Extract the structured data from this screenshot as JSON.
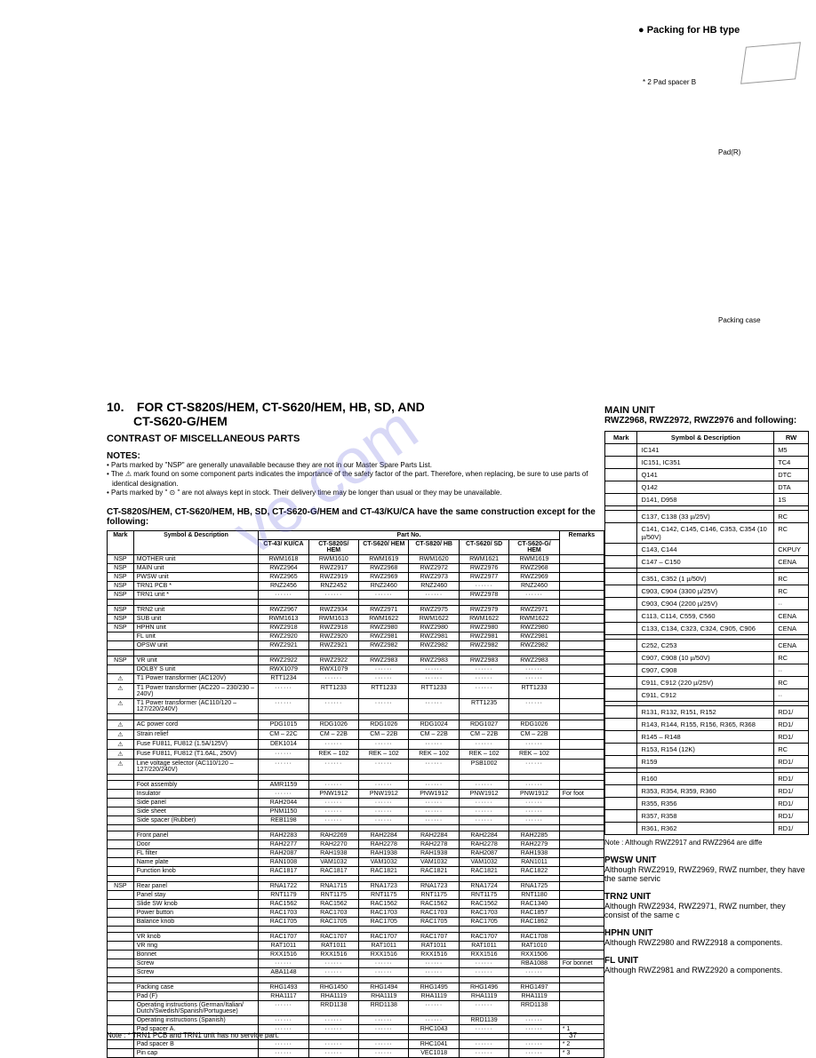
{
  "top_right": {
    "packing_header": "Packing for HB type",
    "pad_spacer": "* 2  Pad spacer B",
    "pad_r": "Pad(R)",
    "packing_case": "Packing case"
  },
  "watermark": "ve.com",
  "section": {
    "number": "10.",
    "title_line1": "FOR CT-S820S/HEM, CT-S620/HEM, HB, SD, AND",
    "title_line2": "CT-S620-G/HEM",
    "contrast": "CONTRAST OF MISCELLANEOUS PARTS",
    "notes_header": "NOTES:",
    "notes": [
      "• Parts marked by \"NSP\" are generally unavailable because they are not in our Master Spare Parts List.",
      "• The ⚠ mark found on some component parts indicates the importance of the safety factor of the part. Therefore, when replacing, be sure to use parts of identical designation.",
      "• Parts marked by \" ⊙ \" are not always kept in stock. Their delivery time may be longer than usual or they may be unavailable."
    ],
    "construction_note": "CT-S820S/HEM, CT-S620/HEM, HB, SD, CT-S620-G/HEM  and CT-43/KU/CA have the same construction except for the following:"
  },
  "table": {
    "header_partno": "Part No.",
    "cols": [
      "Mark",
      "Symbol & Description",
      "CT-43/\nKU/CA",
      "CT-S820S/\nHEM",
      "CT-S620/\nHEM",
      "CT-S820/\nHB",
      "CT-S620/\nSD",
      "CT-S620-G/\nHEM",
      "Remarks"
    ],
    "groups": [
      [
        [
          "NSP",
          "MOTHER unit",
          "RWM1618",
          "RWM1610",
          "RWM1619",
          "RWM1620",
          "RWM1621",
          "RWM1619",
          ""
        ],
        [
          "NSP",
          "MAIN unit",
          "RWZ2964",
          "RWZ2917",
          "RWZ2968",
          "RWZ2972",
          "RWZ2976",
          "RWZ2968",
          ""
        ],
        [
          "NSP",
          "PWSW unit",
          "RWZ2965",
          "RWZ2919",
          "RWZ2969",
          "RWZ2973",
          "RWZ2977",
          "RWZ2969",
          ""
        ],
        [
          "NSP",
          "TRN1 PCB *",
          "RNZ2456",
          "RNZ2452",
          "RNZ2460",
          "RNZ2460",
          "······",
          "RNZ2460",
          ""
        ],
        [
          "NSP",
          "TRN1 unit *",
          "······",
          "······",
          "······",
          "······",
          "RWZ2978",
          "······",
          ""
        ]
      ],
      [
        [
          "NSP",
          "TRN2 unit",
          "RWZ2967",
          "RWZ2934",
          "RWZ2971",
          "RWZ2975",
          "RWZ2979",
          "RWZ2971",
          ""
        ],
        [
          "NSP",
          "SUB unit",
          "RWM1613",
          "RWM1613",
          "RWM1622",
          "RWM1622",
          "RWM1622",
          "RWM1622",
          ""
        ],
        [
          "NSP",
          "HPHN unit",
          "RWZ2918",
          "RWZ2918",
          "RWZ2980",
          "RWZ2980",
          "RWZ2980",
          "RWZ2980",
          ""
        ],
        [
          "",
          "FL unit",
          "RWZ2920",
          "RWZ2920",
          "RWZ2981",
          "RWZ2981",
          "RWZ2981",
          "RWZ2981",
          ""
        ],
        [
          "",
          "OPSW unit",
          "RWZ2921",
          "RWZ2921",
          "RWZ2982",
          "RWZ2982",
          "RWZ2982",
          "RWZ2982",
          ""
        ]
      ],
      [
        [
          "NSP",
          "VR unit",
          "RWZ2922",
          "RWZ2922",
          "RWZ2983",
          "RWZ2983",
          "RWZ2983",
          "RWZ2983",
          ""
        ],
        [
          "",
          "DOLBY S unit",
          "RWX1079",
          "RWX1079",
          "······",
          "······",
          "······",
          "······",
          ""
        ],
        [
          "⚠",
          "T1 Power transformer (AC120V)",
          "RTT1234",
          "······",
          "······",
          "······",
          "······",
          "······",
          ""
        ],
        [
          "⚠",
          "T1 Power transformer (AC220 – 230/230 – 240V)",
          "······",
          "RTT1233",
          "RTT1233",
          "RTT1233",
          "······",
          "RTT1233",
          ""
        ],
        [
          "⚠",
          "T1 Power transformer (AC110/120 – 127/220/240V)",
          "······",
          "······",
          "······",
          "······",
          "RTT1235",
          "······",
          ""
        ]
      ],
      [
        [
          "⚠",
          "AC power cord",
          "PDG1015",
          "RDG1026",
          "RDG1026",
          "RDG1024",
          "RDG1027",
          "RDG1026",
          ""
        ],
        [
          "⚠",
          "Strain relief",
          "CM – 22C",
          "CM – 22B",
          "CM – 22B",
          "CM – 22B",
          "CM – 22B",
          "CM – 22B",
          ""
        ],
        [
          "⚠",
          "Fuse FU811, FU812 (1.5A/125V)",
          "DEK1014",
          "······",
          "······",
          "······",
          "······",
          "······",
          ""
        ],
        [
          "⚠",
          "Fuse FU811, FU812 (T1.6AL, 250V)",
          "······",
          "REK – 102",
          "REK – 102",
          "REK – 102",
          "REK – 102",
          "REK – 102",
          ""
        ],
        [
          "⚠",
          "Line voltage selector (AC110/120 – 127/220/240V)",
          "······",
          "······",
          "······",
          "······",
          "PSB1002",
          "······",
          ""
        ]
      ],
      [
        [
          "",
          "Foot assembly",
          "AMR1159",
          "······",
          "······",
          "······",
          "······",
          "······",
          ""
        ],
        [
          "",
          "Insulator",
          "······",
          "PNW1912",
          "PNW1912",
          "PNW1912",
          "PNW1912",
          "PNW1912",
          "For foot"
        ],
        [
          "",
          "Side panel",
          "RAH2044",
          "······",
          "······",
          "······",
          "······",
          "······",
          ""
        ],
        [
          "",
          "Side sheet",
          "PNM1150",
          "······",
          "······",
          "······",
          "······",
          "······",
          ""
        ],
        [
          "",
          "Side spacer (Rubber)",
          "REB1198",
          "······",
          "······",
          "······",
          "······",
          "······",
          ""
        ]
      ],
      [
        [
          "",
          "Front panel",
          "RAH2283",
          "RAH2269",
          "RAH2284",
          "RAH2284",
          "RAH2284",
          "RAH2285",
          ""
        ],
        [
          "",
          "Door",
          "RAH2277",
          "RAH2270",
          "RAH2278",
          "RAH2278",
          "RAH2278",
          "RAH2279",
          ""
        ],
        [
          "",
          "FL filter",
          "RAH2087",
          "RAH1938",
          "RAH1938",
          "RAH1938",
          "RAH2087",
          "RAH1938",
          ""
        ],
        [
          "",
          "Name plate",
          "RAN1008",
          "VAM1032",
          "VAM1032",
          "VAM1032",
          "VAM1032",
          "RAN1011",
          ""
        ],
        [
          "",
          "Function knob",
          "RAC1817",
          "RAC1817",
          "RAC1821",
          "RAC1821",
          "RAC1821",
          "RAC1822",
          ""
        ]
      ],
      [
        [
          "NSP",
          "Rear panel",
          "RNA1722",
          "RNA1715",
          "RNA1723",
          "RNA1723",
          "RNA1724",
          "RNA1725",
          ""
        ],
        [
          "",
          "Panel stay",
          "RNT1179",
          "RNT1175",
          "RNT1175",
          "RNT1175",
          "RNT1175",
          "RNT1180",
          ""
        ],
        [
          "",
          "Slide SW knob",
          "RAC1562",
          "RAC1562",
          "RAC1562",
          "RAC1562",
          "RAC1562",
          "RAC1340",
          ""
        ],
        [
          "",
          "Power button",
          "RAC1703",
          "RAC1703",
          "RAC1703",
          "RAC1703",
          "RAC1703",
          "RAC1857",
          ""
        ],
        [
          "",
          "Balance knob",
          "RAC1705",
          "RAC1705",
          "RAC1705",
          "RAC1705",
          "RAC1705",
          "RAC1862",
          ""
        ]
      ],
      [
        [
          "",
          "VR knob",
          "RAC1707",
          "RAC1707",
          "RAC1707",
          "RAC1707",
          "RAC1707",
          "RAC1708",
          ""
        ],
        [
          "",
          "VR ring",
          "RAT1011",
          "RAT1011",
          "RAT1011",
          "RAT1011",
          "RAT1011",
          "RAT1010",
          ""
        ],
        [
          "",
          "Bonnet",
          "RXX1516",
          "RXX1516",
          "RXX1516",
          "RXX1516",
          "RXX1516",
          "RXX1506",
          ""
        ],
        [
          "",
          "Screw",
          "······",
          "······",
          "······",
          "······",
          "······",
          "RBA1088",
          "For bonnet"
        ],
        [
          "",
          "Screw",
          "ABA1148",
          "······",
          "······",
          "······",
          "······",
          "······",
          ""
        ]
      ],
      [
        [
          "",
          "Packing case",
          "RHG1493",
          "RHG1450",
          "RHG1494",
          "RHG1495",
          "RHG1496",
          "RHG1497",
          ""
        ],
        [
          "",
          "Pad (F)",
          "RHA1117",
          "RHA1119",
          "RHA1119",
          "RHA1119",
          "RHA1119",
          "RHA1119",
          ""
        ],
        [
          "",
          "Operating instructions (German/Italian/ Dutch/Swedish/Spanish/Portuguese)",
          "······",
          "RRD1138",
          "RRD1138",
          "······",
          "······",
          "RRD1138",
          ""
        ],
        [
          "",
          "Operating instructions (Spanish)",
          "······",
          "······",
          "······",
          "······",
          "RRD1139",
          "······",
          ""
        ],
        [
          "",
          "Pad spacer A.",
          "······",
          "······",
          "······",
          "RHC1043",
          "······",
          "······",
          "* 1"
        ]
      ],
      [
        [
          "",
          "Pad spacer B",
          "······",
          "······",
          "······",
          "RHC1041",
          "······",
          "······",
          "* 2"
        ],
        [
          "",
          "Pin cap",
          "······",
          "······",
          "······",
          "VEC1018",
          "······",
          "······",
          "* 3"
        ]
      ]
    ]
  },
  "right": {
    "main_unit_header": "MAIN UNIT",
    "main_unit_sub": "RWZ2968, RWZ2972, RWZ2976 and following:",
    "cols": [
      "Mark",
      "Symbol & Description",
      "RW"
    ],
    "rows": [
      [
        "",
        "IC141",
        "M5"
      ],
      [
        "",
        "IC151, IC351",
        "TC4"
      ],
      [
        "",
        "Q141",
        "DTC"
      ],
      [
        "",
        "Q142",
        "DTA"
      ],
      [
        "",
        "D141, D958",
        "1S"
      ],
      [
        "",
        "",
        ""
      ],
      [
        "",
        "C137, C138 (33 µ/25V)",
        "RC"
      ],
      [
        "",
        "C141, C142, C145, C146, C353, C354 (10 µ/50V)",
        "RC"
      ],
      [
        "",
        "C143, C144",
        "CKPUY"
      ],
      [
        "",
        "C147 – C150",
        "CENA"
      ],
      [
        "",
        "",
        ""
      ],
      [
        "",
        "C351, C352 (1 µ/50V)",
        "RC"
      ],
      [
        "",
        "C903, C904 (3300 µ/25V)",
        "RC"
      ],
      [
        "",
        "C903, C904 (2200 µ/25V)",
        "··"
      ],
      [
        "",
        "C113, C114, C559, C560",
        "CENA"
      ],
      [
        "",
        "C133, C134, C323, C324, C905, C906",
        "CENA"
      ],
      [
        "",
        "",
        ""
      ],
      [
        "",
        "C252, C253",
        "CENA"
      ],
      [
        "",
        "C907, C908 (10 µ/50V)",
        "RC"
      ],
      [
        "",
        "C907, C908",
        "··"
      ],
      [
        "",
        "C911, C912 (220 µ/25V)",
        "RC"
      ],
      [
        "",
        "C911, C912",
        "··"
      ],
      [
        "",
        "",
        ""
      ],
      [
        "",
        "R131, R132, R151, R152",
        "RD1/"
      ],
      [
        "",
        "R143, R144, R155, R156, R365, R368",
        "RD1/"
      ],
      [
        "",
        "R145 – R148",
        "RD1/"
      ],
      [
        "",
        "R153, R154 (12K)",
        "RC"
      ],
      [
        "",
        "R159",
        "RD1/"
      ],
      [
        "",
        "",
        ""
      ],
      [
        "",
        "R160",
        "RD1/"
      ],
      [
        "",
        "R353, R354, R359, R360",
        "RD1/"
      ],
      [
        "",
        "R355, R356",
        "RD1/"
      ],
      [
        "",
        "R357, R358",
        "RD1/"
      ],
      [
        "",
        "R361, R362",
        "RD1/"
      ]
    ],
    "note_after": "Note : Although RWZ2917 and RWZ2964 are diffe",
    "units": [
      {
        "h": "PWSW UNIT",
        "t": "Although RWZ2919, RWZ2969, RWZ number, they have the same servic"
      },
      {
        "h": "TRN2 UNIT",
        "t": "Although RWZ2934, RWZ2971, RWZ number, they consist of the same c"
      },
      {
        "h": "HPHN UNIT",
        "t": "Although RWZ2980 and RWZ2918 a components."
      },
      {
        "h": "FL UNIT",
        "t": "Although RWZ2981 and RWZ2920 a components."
      }
    ]
  },
  "bottom_note": "Note : * TRN1 PCB and TRN1 unit has no service part.",
  "page_num": "37"
}
